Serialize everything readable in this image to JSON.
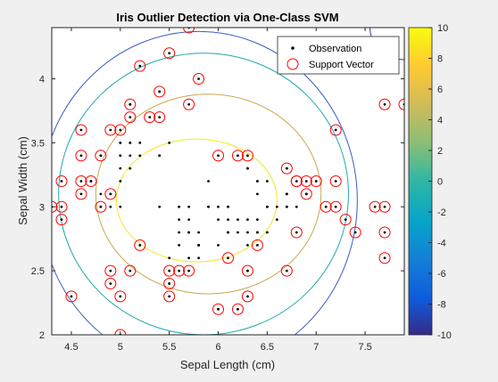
{
  "chart_data": {
    "type": "scatter",
    "title": "Iris Outlier Detection via One-Class SVM",
    "xlabel": "Sepal Length (cm)",
    "ylabel": "Sepal Width (cm)",
    "xlim": [
      4.3,
      7.9
    ],
    "ylim": [
      2.0,
      4.4
    ],
    "xticks": [
      4.5,
      5,
      5.5,
      6,
      6.5,
      7,
      7.5
    ],
    "yticks": [
      2,
      2.5,
      3,
      3.5,
      4
    ],
    "legend_position": "top-right",
    "legend": [
      "Observation",
      "Support Vector"
    ],
    "colorbar": {
      "ticks": [
        10,
        8,
        6,
        4,
        2,
        0,
        -2,
        -4,
        -6,
        -8,
        -10
      ],
      "range": [
        -10,
        10
      ],
      "colormap": "parula"
    },
    "contours": [
      {
        "level": "outer-blue",
        "color": "#3b5cc7",
        "center": [
          5.8,
          3.05
        ],
        "rx": 1.62,
        "ry": 1.32
      },
      {
        "level": "outer-teal",
        "color": "#1fa8b0",
        "center": [
          5.85,
          3.1
        ],
        "rx": 1.48,
        "ry": 1.1
      },
      {
        "level": "mid-orange",
        "color": "#c9a84f",
        "center": [
          5.9,
          3.1
        ],
        "rx": 1.15,
        "ry": 0.78
      },
      {
        "level": "inner-yellow",
        "color": "#f5e623",
        "center": [
          5.78,
          3.05
        ],
        "rx": 0.82,
        "ry": 0.48
      },
      {
        "level": "corner-dark",
        "color": "#2a3a9a",
        "center": [
          7.9,
          4.4
        ],
        "rx": 0.35,
        "ry": 0.25
      }
    ],
    "series": [
      {
        "name": "Observation",
        "marker": "dot",
        "color": "#000000",
        "points": [
          [
            5.1,
            3.5
          ],
          [
            4.9,
            3.0
          ],
          [
            4.7,
            3.2
          ],
          [
            4.6,
            3.1
          ],
          [
            5.0,
            3.6
          ],
          [
            5.4,
            3.9
          ],
          [
            4.6,
            3.4
          ],
          [
            5.0,
            3.4
          ],
          [
            4.4,
            2.9
          ],
          [
            4.9,
            3.1
          ],
          [
            5.4,
            3.7
          ],
          [
            4.8,
            3.4
          ],
          [
            4.8,
            3.0
          ],
          [
            4.3,
            3.0
          ],
          [
            5.8,
            4.0
          ],
          [
            5.7,
            4.4
          ],
          [
            5.4,
            3.9
          ],
          [
            5.1,
            3.5
          ],
          [
            5.7,
            3.8
          ],
          [
            5.1,
            3.8
          ],
          [
            5.4,
            3.4
          ],
          [
            5.1,
            3.7
          ],
          [
            4.6,
            3.6
          ],
          [
            5.1,
            3.3
          ],
          [
            4.8,
            3.4
          ],
          [
            5.0,
            3.0
          ],
          [
            5.0,
            3.4
          ],
          [
            5.2,
            3.5
          ],
          [
            5.2,
            3.4
          ],
          [
            4.7,
            3.2
          ],
          [
            4.8,
            3.1
          ],
          [
            5.4,
            3.4
          ],
          [
            5.2,
            4.1
          ],
          [
            5.5,
            4.2
          ],
          [
            4.9,
            3.1
          ],
          [
            5.0,
            3.2
          ],
          [
            5.5,
            3.5
          ],
          [
            4.9,
            3.6
          ],
          [
            4.4,
            3.0
          ],
          [
            5.1,
            3.4
          ],
          [
            5.0,
            3.5
          ],
          [
            4.5,
            2.3
          ],
          [
            4.4,
            3.2
          ],
          [
            5.0,
            3.5
          ],
          [
            5.1,
            3.8
          ],
          [
            4.8,
            3.0
          ],
          [
            5.1,
            3.8
          ],
          [
            4.6,
            3.2
          ],
          [
            5.3,
            3.7
          ],
          [
            5.0,
            3.3
          ],
          [
            7.0,
            3.2
          ],
          [
            6.4,
            3.2
          ],
          [
            6.9,
            3.1
          ],
          [
            5.5,
            2.3
          ],
          [
            6.5,
            2.8
          ],
          [
            5.7,
            2.8
          ],
          [
            6.3,
            3.3
          ],
          [
            4.9,
            2.4
          ],
          [
            6.6,
            2.9
          ],
          [
            5.2,
            2.7
          ],
          [
            5.0,
            2.0
          ],
          [
            5.9,
            3.0
          ],
          [
            6.0,
            2.2
          ],
          [
            6.1,
            2.9
          ],
          [
            5.6,
            2.9
          ],
          [
            6.7,
            3.1
          ],
          [
            5.6,
            3.0
          ],
          [
            5.8,
            2.7
          ],
          [
            6.2,
            2.2
          ],
          [
            5.6,
            2.5
          ],
          [
            5.9,
            3.2
          ],
          [
            6.1,
            2.8
          ],
          [
            6.3,
            2.5
          ],
          [
            6.1,
            2.8
          ],
          [
            6.4,
            2.9
          ],
          [
            6.6,
            3.0
          ],
          [
            6.8,
            2.8
          ],
          [
            6.7,
            3.0
          ],
          [
            6.0,
            2.9
          ],
          [
            5.7,
            2.6
          ],
          [
            5.5,
            2.4
          ],
          [
            5.5,
            2.4
          ],
          [
            5.8,
            2.7
          ],
          [
            6.0,
            2.7
          ],
          [
            5.4,
            3.0
          ],
          [
            6.0,
            3.4
          ],
          [
            6.7,
            3.1
          ],
          [
            6.3,
            2.3
          ],
          [
            5.6,
            3.0
          ],
          [
            5.5,
            2.5
          ],
          [
            5.5,
            2.6
          ],
          [
            6.1,
            3.0
          ],
          [
            5.8,
            2.6
          ],
          [
            5.0,
            2.3
          ],
          [
            5.6,
            2.7
          ],
          [
            5.7,
            3.0
          ],
          [
            5.7,
            2.9
          ],
          [
            6.2,
            2.9
          ],
          [
            5.1,
            2.5
          ],
          [
            5.7,
            2.8
          ],
          [
            6.3,
            3.3
          ],
          [
            5.8,
            2.7
          ],
          [
            7.1,
            3.0
          ],
          [
            6.3,
            2.9
          ],
          [
            6.5,
            3.0
          ],
          [
            7.6,
            3.0
          ],
          [
            4.9,
            2.5
          ],
          [
            7.3,
            2.9
          ],
          [
            6.7,
            2.5
          ],
          [
            7.2,
            3.6
          ],
          [
            6.5,
            3.2
          ],
          [
            6.4,
            2.7
          ],
          [
            6.8,
            3.0
          ],
          [
            5.7,
            2.5
          ],
          [
            5.8,
            2.8
          ],
          [
            6.4,
            3.2
          ],
          [
            6.5,
            3.0
          ],
          [
            7.7,
            3.8
          ],
          [
            7.7,
            2.6
          ],
          [
            6.0,
            2.2
          ],
          [
            6.9,
            3.2
          ],
          [
            5.6,
            2.8
          ],
          [
            7.7,
            2.8
          ],
          [
            6.3,
            2.7
          ],
          [
            6.7,
            3.3
          ],
          [
            7.2,
            3.2
          ],
          [
            6.2,
            2.8
          ],
          [
            6.1,
            3.0
          ],
          [
            6.4,
            2.8
          ],
          [
            7.2,
            3.0
          ],
          [
            7.4,
            2.8
          ],
          [
            7.9,
            3.8
          ],
          [
            6.4,
            2.8
          ],
          [
            6.3,
            2.8
          ],
          [
            6.1,
            2.6
          ],
          [
            7.7,
            3.0
          ],
          [
            6.3,
            3.4
          ],
          [
            6.4,
            3.1
          ],
          [
            6.0,
            3.0
          ],
          [
            6.9,
            3.1
          ],
          [
            6.7,
            3.1
          ],
          [
            6.9,
            3.1
          ],
          [
            5.8,
            2.7
          ],
          [
            6.8,
            3.2
          ],
          [
            6.7,
            3.3
          ],
          [
            6.7,
            3.0
          ],
          [
            6.3,
            2.5
          ],
          [
            6.5,
            3.0
          ],
          [
            6.2,
            3.4
          ],
          [
            5.9,
            3.0
          ]
        ]
      },
      {
        "name": "Support Vector",
        "marker": "circle",
        "color": "#ff0000",
        "points": [
          [
            5.7,
            4.4
          ],
          [
            5.5,
            4.2
          ],
          [
            5.2,
            4.1
          ],
          [
            5.8,
            4.0
          ],
          [
            5.4,
            3.9
          ],
          [
            7.7,
            3.8
          ],
          [
            7.9,
            3.8
          ],
          [
            5.1,
            3.8
          ],
          [
            5.7,
            3.8
          ],
          [
            5.1,
            3.7
          ],
          [
            5.3,
            3.7
          ],
          [
            5.4,
            3.7
          ],
          [
            4.6,
            3.6
          ],
          [
            4.9,
            3.6
          ],
          [
            5.0,
            3.6
          ],
          [
            7.2,
            3.6
          ],
          [
            4.6,
            3.4
          ],
          [
            4.8,
            3.4
          ],
          [
            6.0,
            3.4
          ],
          [
            6.2,
            3.4
          ],
          [
            6.3,
            3.4
          ],
          [
            6.7,
            3.3
          ],
          [
            4.4,
            3.2
          ],
          [
            4.6,
            3.2
          ],
          [
            4.7,
            3.2
          ],
          [
            6.8,
            3.2
          ],
          [
            6.9,
            3.2
          ],
          [
            7.0,
            3.2
          ],
          [
            7.2,
            3.2
          ],
          [
            6.8,
            3.2
          ],
          [
            4.6,
            3.1
          ],
          [
            4.9,
            3.1
          ],
          [
            6.9,
            3.1
          ],
          [
            4.3,
            3.0
          ],
          [
            4.4,
            3.0
          ],
          [
            4.8,
            3.0
          ],
          [
            7.1,
            3.0
          ],
          [
            7.2,
            3.0
          ],
          [
            7.6,
            3.0
          ],
          [
            7.7,
            3.0
          ],
          [
            4.4,
            2.9
          ],
          [
            7.3,
            2.9
          ],
          [
            6.8,
            2.8
          ],
          [
            7.4,
            2.8
          ],
          [
            7.7,
            2.8
          ],
          [
            5.2,
            2.7
          ],
          [
            6.4,
            2.7
          ],
          [
            6.1,
            2.6
          ],
          [
            7.7,
            2.6
          ],
          [
            4.9,
            2.5
          ],
          [
            5.1,
            2.5
          ],
          [
            5.5,
            2.5
          ],
          [
            5.6,
            2.5
          ],
          [
            5.7,
            2.5
          ],
          [
            6.3,
            2.5
          ],
          [
            6.7,
            2.5
          ],
          [
            4.9,
            2.4
          ],
          [
            5.5,
            2.4
          ],
          [
            4.5,
            2.3
          ],
          [
            5.0,
            2.3
          ],
          [
            5.5,
            2.3
          ],
          [
            6.3,
            2.3
          ],
          [
            6.0,
            2.2
          ],
          [
            6.2,
            2.2
          ],
          [
            5.0,
            2.0
          ]
        ]
      }
    ]
  }
}
